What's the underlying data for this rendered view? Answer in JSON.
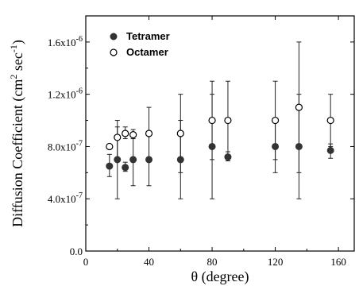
{
  "chart_data": {
    "type": "scatter",
    "xlabel": "θ (degree)",
    "ylabel_main": "Diffusion Coefficient (cm",
    "ylabel_sup1": "2",
    "ylabel_mid": " sec",
    "ylabel_sup2": "-1",
    "ylabel_end": ")",
    "xlim": [
      0,
      170
    ],
    "ylim": [
      0,
      1.8e-06
    ],
    "x_ticks": [
      {
        "value": 0,
        "label": "0"
      },
      {
        "value": 40,
        "label": "40"
      },
      {
        "value": 80,
        "label": "80"
      },
      {
        "value": 120,
        "label": "120"
      },
      {
        "value": 160,
        "label": "160"
      }
    ],
    "y_ticks": [
      {
        "value": 0,
        "label": "0.0"
      },
      {
        "value": 4e-07,
        "label": "4.0x10",
        "exp": "-7"
      },
      {
        "value": 8e-07,
        "label": "8.0x10",
        "exp": "-7"
      },
      {
        "value": 1.2e-06,
        "label": "1.2x10",
        "exp": "-6"
      },
      {
        "value": 1.6e-06,
        "label": "1.6x10",
        "exp": "-6"
      }
    ],
    "legend_position": "top-left",
    "series": [
      {
        "name": "Tetramer",
        "marker": "filled-circle",
        "color": "#333333",
        "points": [
          {
            "x": 15,
            "y": 6.5e-07,
            "ylow": 5.7e-07,
            "yhigh": 7.4e-07
          },
          {
            "x": 20,
            "y": 7e-07,
            "ylow": 4e-07,
            "yhigh": 1e-06
          },
          {
            "x": 25,
            "y": 6.4e-07,
            "ylow": 6.1e-07,
            "yhigh": 6.8e-07
          },
          {
            "x": 30,
            "y": 7e-07,
            "ylow": 5e-07,
            "yhigh": 9e-07
          },
          {
            "x": 40,
            "y": 7e-07,
            "ylow": 5e-07,
            "yhigh": 9e-07
          },
          {
            "x": 60,
            "y": 7e-07,
            "ylow": 4e-07,
            "yhigh": 1e-06
          },
          {
            "x": 80,
            "y": 8e-07,
            "ylow": 4e-07,
            "yhigh": 1.2e-06
          },
          {
            "x": 90,
            "y": 7.2e-07,
            "ylow": 6.9e-07,
            "yhigh": 7.6e-07
          },
          {
            "x": 120,
            "y": 8e-07,
            "ylow": 6e-07,
            "yhigh": 1e-06
          },
          {
            "x": 135,
            "y": 8e-07,
            "ylow": 4e-07,
            "yhigh": 1.2e-06
          },
          {
            "x": 155,
            "y": 7.7e-07,
            "ylow": 7.1e-07,
            "yhigh": 8.2e-07
          }
        ]
      },
      {
        "name": "Octamer",
        "marker": "open-circle",
        "color": "#000000",
        "points": [
          {
            "x": 15,
            "y": 8e-07,
            "ylow": 8e-07,
            "yhigh": 8e-07
          },
          {
            "x": 20,
            "y": 8.7e-07,
            "ylow": 7e-07,
            "yhigh": 9.5e-07
          },
          {
            "x": 25,
            "y": 9e-07,
            "ylow": 8.6e-07,
            "yhigh": 9.5e-07
          },
          {
            "x": 30,
            "y": 8.9e-07,
            "ylow": 8.6e-07,
            "yhigh": 9.3e-07
          },
          {
            "x": 40,
            "y": 9e-07,
            "ylow": 7e-07,
            "yhigh": 1.1e-06
          },
          {
            "x": 60,
            "y": 9e-07,
            "ylow": 6e-07,
            "yhigh": 1.2e-06
          },
          {
            "x": 80,
            "y": 1e-06,
            "ylow": 7e-07,
            "yhigh": 1.3e-06
          },
          {
            "x": 90,
            "y": 1e-06,
            "ylow": 7e-07,
            "yhigh": 1.3e-06
          },
          {
            "x": 120,
            "y": 1e-06,
            "ylow": 7e-07,
            "yhigh": 1.3e-06
          },
          {
            "x": 135,
            "y": 1.1e-06,
            "ylow": 6e-07,
            "yhigh": 1.6e-06
          },
          {
            "x": 155,
            "y": 1e-06,
            "ylow": 8e-07,
            "yhigh": 1.2e-06
          }
        ]
      }
    ]
  }
}
